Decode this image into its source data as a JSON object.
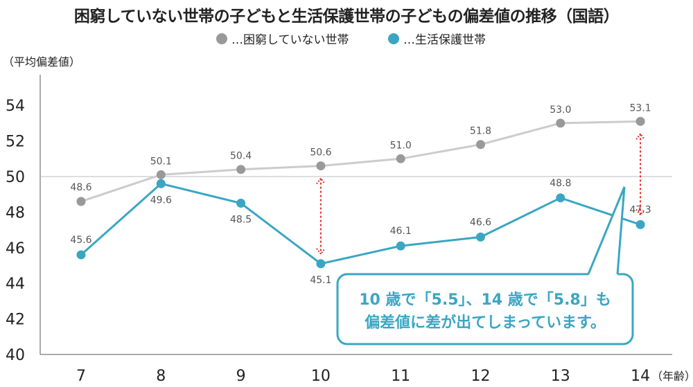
{
  "chart_data": {
    "type": "line",
    "title": "困窮していない世帯の子どもと生活保護世帯の子どもの偏差値の推移（国語）",
    "ylabel": "（平均偏差値）",
    "xlabel": "（年齢）",
    "x": [
      7,
      8,
      9,
      10,
      11,
      12,
      13,
      14
    ],
    "x_tick_labels": [
      "7",
      "8",
      "9",
      "10",
      "11",
      "12",
      "13",
      "14"
    ],
    "ylim": [
      40,
      55
    ],
    "y_ticks": [
      40,
      42,
      44,
      46,
      48,
      50,
      52,
      54
    ],
    "y_tick_labels": [
      "40",
      "42",
      "44",
      "46",
      "48",
      "50",
      "52",
      "54"
    ],
    "grid": "horizontal line at 50 only",
    "legend_placement": "top-center",
    "series": [
      {
        "name": "…困窮していない世帯",
        "color": "#999999",
        "line_color": "#cccccc",
        "values": [
          48.6,
          50.1,
          50.4,
          50.6,
          51.0,
          51.8,
          53.0,
          53.1
        ],
        "labels": [
          "48.6",
          "50.1",
          "50.4",
          "50.6",
          "51.0",
          "51.8",
          "53.0",
          "53.1"
        ]
      },
      {
        "name": "…生活保護世帯",
        "color": "#3aa6c3",
        "line_color": "#3aa6c3",
        "values": [
          45.6,
          49.6,
          48.5,
          45.1,
          46.1,
          46.6,
          48.8,
          47.3
        ],
        "labels": [
          "45.6",
          "49.6",
          "48.5",
          "45.1",
          "46.1",
          "46.6",
          "48.8",
          "47.3"
        ]
      }
    ],
    "gap_arrows": [
      {
        "x": 10,
        "color": "#e03030"
      },
      {
        "x": 14,
        "color": "#e03030"
      }
    ],
    "annotation": {
      "lines": [
        "10 歳で「5.5」、14 歳で「5.8」も",
        "偏差値に差が出てしまっています。"
      ],
      "color": "#3aa6c3"
    }
  }
}
